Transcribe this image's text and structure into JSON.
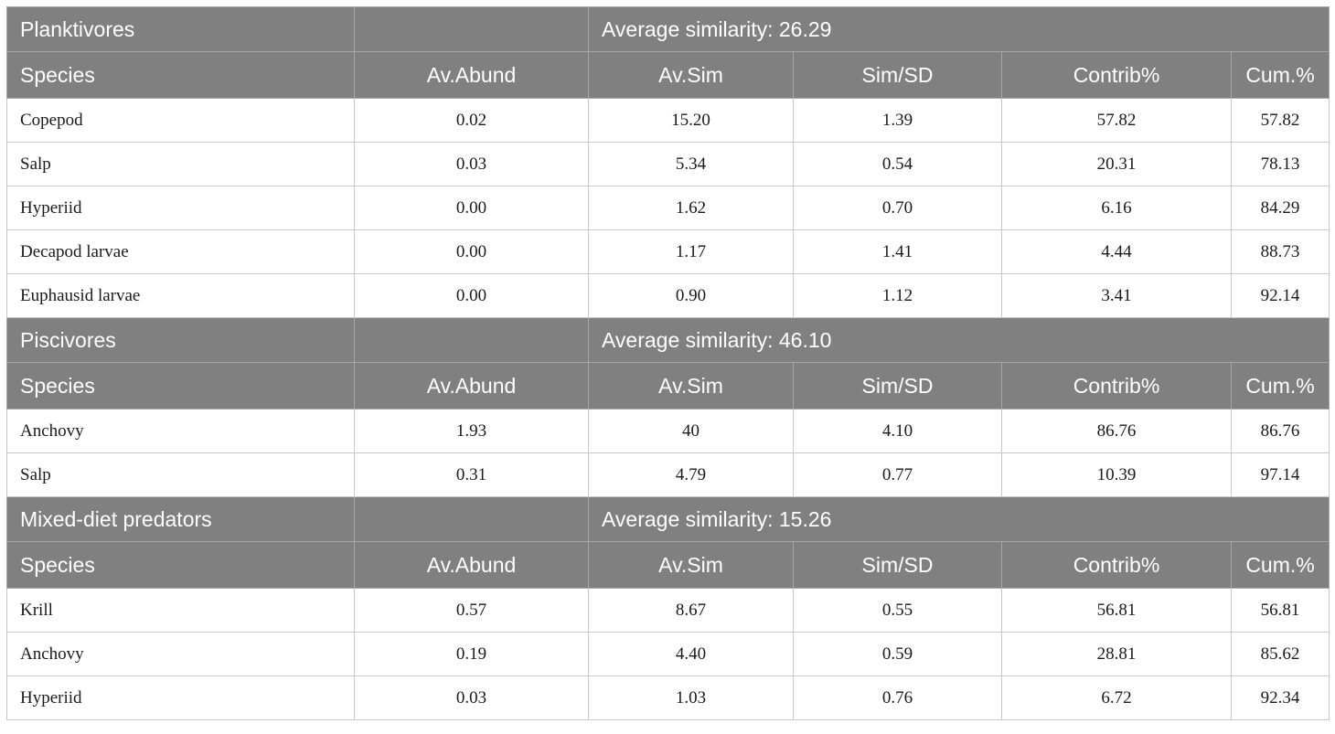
{
  "columns": [
    "Species",
    "Av.Abund",
    "Av.Sim",
    "Sim/SD",
    "Contrib%",
    "Cum.%"
  ],
  "groups": [
    {
      "name": "Planktivores",
      "similarity": "Average similarity: 26.29",
      "rows": [
        [
          "Copepod",
          "0.02",
          "15.20",
          "1.39",
          "57.82",
          "57.82"
        ],
        [
          "Salp",
          "0.03",
          "5.34",
          "0.54",
          "20.31",
          "78.13"
        ],
        [
          "Hyperiid",
          "0.00",
          "1.62",
          "0.70",
          "6.16",
          "84.29"
        ],
        [
          "Decapod larvae",
          "0.00",
          "1.17",
          "1.41",
          "4.44",
          "88.73"
        ],
        [
          "Euphausid larvae",
          "0.00",
          "0.90",
          "1.12",
          "3.41",
          "92.14"
        ]
      ]
    },
    {
      "name": "Piscivores",
      "similarity": "Average similarity: 46.10",
      "rows": [
        [
          "Anchovy",
          "1.93",
          "40",
          "4.10",
          "86.76",
          "86.76"
        ],
        [
          "Salp",
          "0.31",
          "4.79",
          "0.77",
          "10.39",
          "97.14"
        ]
      ]
    },
    {
      "name": "Mixed-diet predators",
      "similarity": "Average similarity: 15.26",
      "rows": [
        [
          "Krill",
          "0.57",
          "8.67",
          "0.55",
          "56.81",
          "56.81"
        ],
        [
          "Anchovy",
          "0.19",
          "4.40",
          "0.59",
          "28.81",
          "85.62"
        ],
        [
          "Hyperiid",
          "0.03",
          "1.03",
          "0.76",
          "6.72",
          "92.34"
        ]
      ]
    }
  ]
}
